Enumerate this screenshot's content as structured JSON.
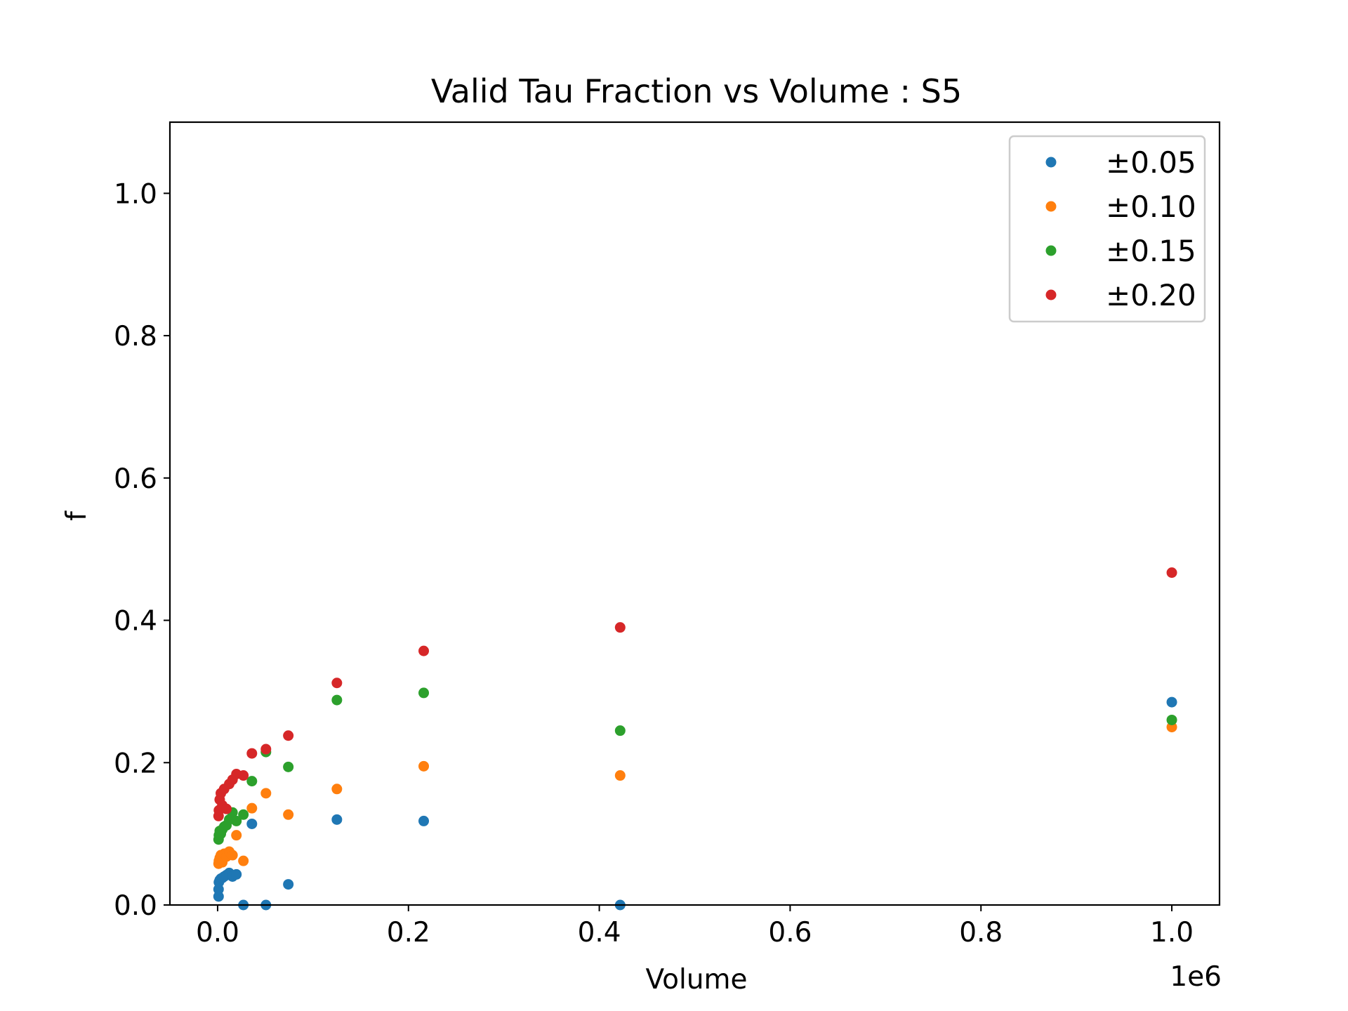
{
  "chart_data": {
    "type": "scatter",
    "title": "Valid Tau Fraction vs Volume : S5",
    "xlabel": "Volume",
    "ylabel": "f",
    "x_offset_label": "1e6",
    "x_scale_factor": 1000000,
    "xlim": [
      -50000,
      1050000
    ],
    "ylim": [
      0,
      1.1
    ],
    "xticks": [
      0,
      200000,
      400000,
      600000,
      800000,
      1000000
    ],
    "xtick_labels": [
      "0.0",
      "0.2",
      "0.4",
      "0.6",
      "0.8",
      "1.0"
    ],
    "yticks": [
      0,
      0.2,
      0.4,
      0.6,
      0.8,
      1.0
    ],
    "ytick_labels": [
      "0.0",
      "0.2",
      "0.4",
      "0.6",
      "0.8",
      "1.0"
    ],
    "grid": false,
    "legend_position": "upper right",
    "series": [
      {
        "name": "±0.05",
        "color": "#1f77b4",
        "points": [
          [
            1000,
            0.012
          ],
          [
            1000,
            0.022
          ],
          [
            1331,
            0.032
          ],
          [
            2197,
            0.035
          ],
          [
            3375,
            0.037
          ],
          [
            4913,
            0.038
          ],
          [
            6859,
            0.04
          ],
          [
            9261,
            0.042
          ],
          [
            12167,
            0.045
          ],
          [
            15625,
            0.04
          ],
          [
            19683,
            0.043
          ],
          [
            27000,
            0.0
          ],
          [
            35937,
            0.114
          ],
          [
            50653,
            0.0
          ],
          [
            74088,
            0.029
          ],
          [
            125000,
            0.12
          ],
          [
            216000,
            0.118
          ],
          [
            421875,
            0.0
          ],
          [
            1000000,
            0.285
          ]
        ]
      },
      {
        "name": "±0.10",
        "color": "#ff7f0e",
        "points": [
          [
            1000,
            0.058
          ],
          [
            1331,
            0.062
          ],
          [
            2197,
            0.066
          ],
          [
            3375,
            0.07
          ],
          [
            4913,
            0.06
          ],
          [
            6859,
            0.072
          ],
          [
            9261,
            0.068
          ],
          [
            12167,
            0.075
          ],
          [
            15625,
            0.07
          ],
          [
            19683,
            0.098
          ],
          [
            27000,
            0.062
          ],
          [
            35937,
            0.136
          ],
          [
            50653,
            0.157
          ],
          [
            74088,
            0.127
          ],
          [
            125000,
            0.163
          ],
          [
            216000,
            0.195
          ],
          [
            421875,
            0.182
          ],
          [
            1000000,
            0.25
          ]
        ]
      },
      {
        "name": "±0.15",
        "color": "#2ca02c",
        "points": [
          [
            1000,
            0.092
          ],
          [
            1331,
            0.098
          ],
          [
            2197,
            0.104
          ],
          [
            3375,
            0.1
          ],
          [
            4913,
            0.106
          ],
          [
            6859,
            0.11
          ],
          [
            9261,
            0.112
          ],
          [
            12167,
            0.12
          ],
          [
            15625,
            0.13
          ],
          [
            19683,
            0.118
          ],
          [
            27000,
            0.127
          ],
          [
            35937,
            0.174
          ],
          [
            50653,
            0.215
          ],
          [
            74088,
            0.194
          ],
          [
            125000,
            0.288
          ],
          [
            216000,
            0.298
          ],
          [
            421875,
            0.245
          ],
          [
            1000000,
            0.26
          ]
        ]
      },
      {
        "name": "±0.20",
        "color": "#d62728",
        "points": [
          [
            1000,
            0.125
          ],
          [
            1331,
            0.133
          ],
          [
            2197,
            0.148
          ],
          [
            3375,
            0.157
          ],
          [
            4913,
            0.14
          ],
          [
            6859,
            0.163
          ],
          [
            9261,
            0.135
          ],
          [
            12167,
            0.17
          ],
          [
            15625,
            0.176
          ],
          [
            19683,
            0.184
          ],
          [
            27000,
            0.182
          ],
          [
            35937,
            0.213
          ],
          [
            50653,
            0.219
          ],
          [
            74088,
            0.238
          ],
          [
            125000,
            0.312
          ],
          [
            216000,
            0.357
          ],
          [
            421875,
            0.39
          ],
          [
            1000000,
            0.467
          ]
        ]
      }
    ]
  }
}
